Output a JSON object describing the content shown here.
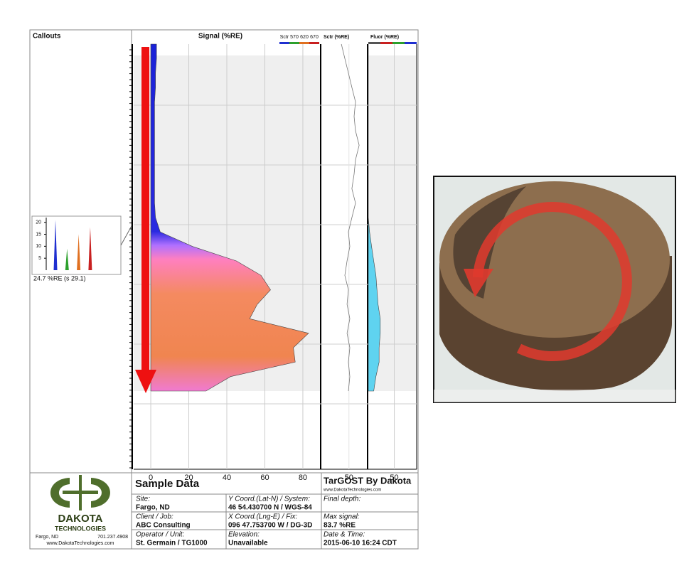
{
  "callouts": {
    "title": "Callouts",
    "chart": {
      "type": "bar",
      "ylim": [
        0,
        22
      ],
      "yticks": [
        5,
        10,
        15,
        20
      ],
      "values": [
        21,
        9,
        15,
        18
      ],
      "colors": [
        "#1f2fd0",
        "#2ca02c",
        "#e07020",
        "#c82020"
      ],
      "label": "24.7 %RE (s 29.1)"
    }
  },
  "signal": {
    "title": "Signal (%RE)",
    "type": "area",
    "legend": {
      "names": [
        "Sctr",
        "570",
        "620",
        "670"
      ],
      "colors": [
        "#1f2fd0",
        "#2ca02c",
        "#e07020",
        "#c82020"
      ]
    },
    "xlim": [
      -9,
      89
    ],
    "xticks": [
      0,
      20,
      40,
      60,
      80
    ],
    "values": [
      3,
      3,
      2.5,
      2.5,
      2,
      2,
      2,
      2,
      2,
      2,
      2,
      2,
      2.5,
      5,
      22,
      45,
      58,
      63,
      56,
      52,
      83,
      75,
      76,
      42,
      29
    ]
  },
  "sctr": {
    "title": "Sctr (%RE)",
    "type": "line",
    "xlim": [
      34,
      60
    ],
    "xticks": [
      50
    ],
    "values": [
      45.6,
      47.6,
      49.7,
      51.7,
      53.8,
      53,
      53.8,
      55.9,
      53.8,
      53,
      51.7,
      53.8,
      51.7,
      49.7,
      50.5,
      48.9,
      47.6,
      49.7,
      48.9,
      50.5,
      48.9,
      50.5,
      49.7,
      50.5,
      49.7
    ]
  },
  "fluor": {
    "title": "Fluor (%RE)",
    "type": "area",
    "colors": [
      "#555555",
      "#c82020",
      "#2ca02c",
      "#1f2fd0"
    ],
    "fill": "#5fd3f0",
    "xlim": [
      38,
      60
    ],
    "xticks": [
      50
    ],
    "values": [
      38,
      38,
      38,
      38,
      38,
      38,
      38,
      38,
      38,
      38,
      38,
      38,
      38,
      38.6,
      39.5,
      40.5,
      41.5,
      42,
      42.5,
      43.5,
      43.5,
      43,
      43,
      41.5,
      40.5
    ]
  },
  "footer": {
    "company": {
      "name": "DAKOTA",
      "sub": "TECHNOLOGIES",
      "city": "Fargo, ND",
      "phone": "701.237.4908",
      "web": "www.DakotaTechnologies.com"
    },
    "title": "Sample Data",
    "brand": "TarGOST By Dakota",
    "brand_web": "www.DakotaTechnologies.com",
    "cells": [
      [
        {
          "label": "Site:",
          "value": "Fargo, ND"
        },
        {
          "label": "Y Coord.(Lat-N) / System:",
          "value": "46 54.430700 N / WGS-84"
        },
        {
          "label": "Final depth:"
        }
      ],
      [
        {
          "label": "Client / Job:",
          "value": "ABC Consulting"
        },
        {
          "label": "X Coord.(Lng-E) / Fix:",
          "value": "096 47.753700 W / DG-3D"
        },
        {
          "label": "Max signal:",
          "value": "83.7 %RE"
        }
      ],
      [
        {
          "label": "Operator / Unit:",
          "value": "St. Germain / TG1000"
        },
        {
          "label": "Elevation:",
          "value": "Unavailable"
        },
        {
          "label": "Date & Time:",
          "value": "2015-06-10 16:24 CDT"
        }
      ]
    ]
  }
}
